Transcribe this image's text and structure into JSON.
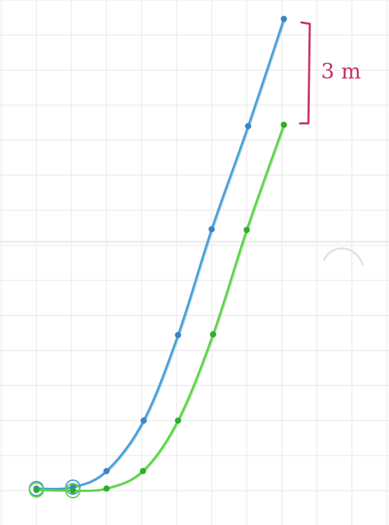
{
  "annotation": {
    "text": "3 m",
    "color": "#c8306a"
  },
  "paper": {
    "background": "#ffffff",
    "grid_color": "#e6e6e6",
    "fold_shadow": "#e9e9e9"
  },
  "curves": [
    {
      "id": "blue-curve",
      "color": "#4a9fd6",
      "dot_color": "#3b85c4"
    },
    {
      "id": "green-curve",
      "color": "#5fd34a",
      "dot_color": "#2fae2a"
    }
  ]
}
